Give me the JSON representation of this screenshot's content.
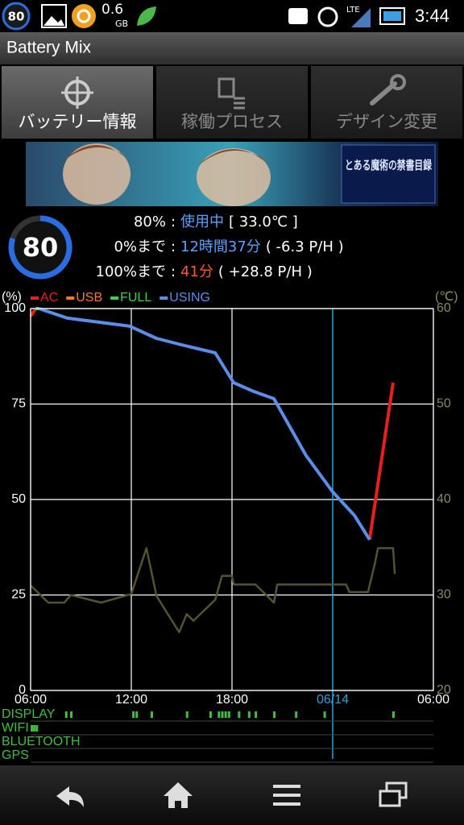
{
  "status_bar": {
    "battery_badge": "80",
    "storage": "0.6",
    "storage_unit": "GB",
    "network": "LTE",
    "time": "3:44"
  },
  "app_bar": {
    "title": "Battery Mix"
  },
  "tabs": [
    "バッテリー情報",
    "稼働プロセス",
    "デザイン変更"
  ],
  "banner": {
    "title": "とある魔術の禁書目録"
  },
  "battery": {
    "level_badge": "80",
    "separator": ":",
    "rows": [
      {
        "label": "80%",
        "value": "使用中",
        "detail": "[ 33.0℃ ]"
      },
      {
        "label": "0%まで",
        "value": "12時間37分",
        "detail": "( -6.3 P/H )"
      },
      {
        "label": "100%まで",
        "value": "41分",
        "detail": "( +28.8 P/H )"
      }
    ]
  },
  "chart_data": {
    "type": "line",
    "y_label": "(%)",
    "y2_label": "(℃)",
    "xlim": [
      0,
      24
    ],
    "xticks": [
      {
        "value": 0,
        "label": "06:00"
      },
      {
        "value": 6,
        "label": "12:00"
      },
      {
        "value": 12,
        "label": "18:00"
      },
      {
        "value": 18,
        "label": "06/14"
      },
      {
        "value": 24,
        "label": "06:00"
      }
    ],
    "ylim": [
      0,
      100
    ],
    "yticks": [
      0,
      25,
      50,
      75,
      100
    ],
    "y2lim": [
      20,
      60
    ],
    "y2ticks": [
      20,
      30,
      40,
      50,
      60
    ],
    "grid": true,
    "day_boundary": 18,
    "x": [
      0,
      0.3,
      0.5,
      2.2,
      5.9,
      7.5,
      9,
      11,
      12.1,
      13.3,
      14.5,
      16.4,
      18,
      19.3,
      20.2,
      21.6
    ],
    "series": [
      {
        "name": "AC",
        "color": "#e8201c",
        "values": [
          98,
          100,
          null,
          null,
          null,
          null,
          null,
          null,
          null,
          null,
          null,
          null,
          null,
          null,
          39.5,
          80.6
        ]
      },
      {
        "name": "USB",
        "color": "#f07a2a",
        "values": [
          null,
          null,
          null,
          null,
          null,
          null,
          null,
          null,
          null,
          null,
          null,
          null,
          null,
          null,
          null,
          null
        ]
      },
      {
        "name": "FULL",
        "color": "#3ed43e",
        "values": [
          null,
          100,
          100,
          null,
          null,
          null,
          null,
          null,
          null,
          null,
          null,
          null,
          null,
          null,
          null,
          null
        ]
      },
      {
        "name": "USING",
        "color": "#5a8ee8",
        "values": [
          null,
          null,
          100,
          97.5,
          95.4,
          92.2,
          90.5,
          88.4,
          80.6,
          78.3,
          76.4,
          61.6,
          52,
          45.8,
          39.5,
          null
        ]
      },
      {
        "color": "#55532f",
        "axis": "y2",
        "x": [
          0,
          1.05,
          2,
          2.4,
          4.2,
          6,
          6.9,
          7.5,
          8.85,
          9.3,
          9.7,
          11,
          11.4,
          12,
          12.1,
          13.4,
          14.5,
          14.7,
          17.1,
          18.8,
          19,
          20.1,
          20.5,
          20.7,
          21.6,
          21.7
        ],
        "values": [
          31,
          29.2,
          29.2,
          30,
          29.2,
          30.1,
          34.9,
          29.9,
          26.1,
          28,
          27.3,
          29.5,
          32,
          32,
          31.1,
          31.1,
          29.2,
          31.1,
          31.1,
          31.1,
          30.3,
          30.3,
          33.2,
          34.9,
          34.9,
          32.2
        ]
      }
    ],
    "events": [
      {
        "name": "DISPLAY",
        "x": [
          2.1,
          2.4,
          6.1,
          6.3,
          7.2,
          9.3,
          10.7,
          11.2,
          11.4,
          11.6,
          11.8,
          12.4,
          13,
          13.4,
          14.5,
          15.8,
          17.5,
          21.6
        ]
      },
      {
        "name": "WIFI",
        "x": [
          0.05,
          0.2,
          0.35
        ]
      },
      {
        "name": "BLUETOOTH",
        "x": []
      },
      {
        "name": "GPS",
        "x": []
      }
    ]
  }
}
